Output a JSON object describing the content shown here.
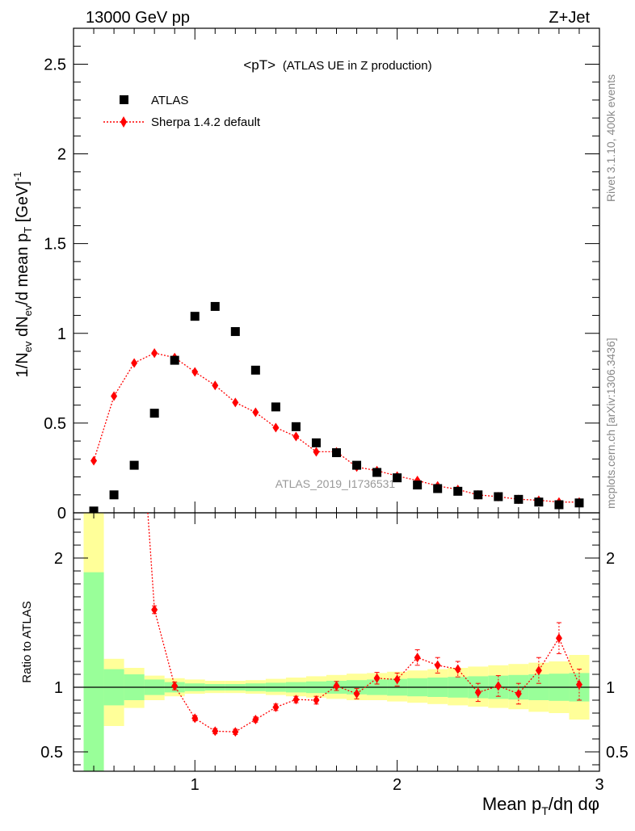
{
  "header": {
    "left": "13000 GeV pp",
    "right": "Z+Jet"
  },
  "side_labels": {
    "rivet": "Rivet 3.1.10,  400k events",
    "mcplots": "mcplots.cern.ch [arXiv:1306.3436]"
  },
  "watermark": "ATLAS_2019_I1736531",
  "chart_data": [
    {
      "type": "scatter",
      "panel": "main",
      "title": "<pT> (ATLAS UE in Z production)",
      "title_main": "<pT>",
      "title_sub": "(ATLAS UE in Z production)",
      "ylabel": "1/N_ev dN_ev/d mean p_T [GeV]^-1",
      "ylabel_parts": {
        "a": "1/N",
        "b": "ev",
        "c": " dN",
        "d": "ev",
        "e": "/d mean p",
        "f": "T",
        "g": " [GeV]",
        "h": "-1"
      },
      "xlim": [
        0.4,
        3.0
      ],
      "ylim": [
        0,
        2.7
      ],
      "yticks": [
        0,
        0.5,
        1,
        1.5,
        2,
        2.5
      ],
      "ytick_labels": [
        "0",
        "0.5",
        "1",
        "1.5",
        "2",
        "2.5"
      ],
      "legend": [
        {
          "name": "ATLAS",
          "color": "#000000",
          "marker": "square"
        },
        {
          "name": "Sherpa 1.4.2 default",
          "color": "#ff0000",
          "marker": "diamond",
          "line": "dotted"
        }
      ],
      "series": [
        {
          "name": "ATLAS",
          "x": [
            0.5,
            0.6,
            0.7,
            0.8,
            0.9,
            1.0,
            1.1,
            1.2,
            1.3,
            1.4,
            1.5,
            1.6,
            1.7,
            1.8,
            1.9,
            2.0,
            2.1,
            2.2,
            2.3,
            2.4,
            2.5,
            2.6,
            2.7,
            2.8,
            2.9
          ],
          "values": [
            0.01,
            0.1,
            0.265,
            0.555,
            0.85,
            1.095,
            1.15,
            1.01,
            0.795,
            0.59,
            0.48,
            0.39,
            0.335,
            0.265,
            0.225,
            0.195,
            0.155,
            0.135,
            0.12,
            0.1,
            0.09,
            0.075,
            0.06,
            0.045,
            0.055
          ]
        },
        {
          "name": "Sherpa 1.4.2 default",
          "x": [
            0.5,
            0.6,
            0.7,
            0.8,
            0.9,
            1.0,
            1.1,
            1.2,
            1.3,
            1.4,
            1.5,
            1.6,
            1.7,
            1.8,
            1.9,
            2.0,
            2.1,
            2.2,
            2.3,
            2.4,
            2.5,
            2.6,
            2.7,
            2.8,
            2.9
          ],
          "values": [
            0.29,
            0.65,
            0.835,
            0.89,
            0.865,
            0.785,
            0.71,
            0.615,
            0.56,
            0.475,
            0.425,
            0.34,
            0.34,
            0.255,
            0.235,
            0.205,
            0.18,
            0.15,
            0.13,
            0.1,
            0.09,
            0.075,
            0.07,
            0.06,
            0.06
          ],
          "errors": [
            0.01,
            0.015,
            0.02,
            0.025,
            0.02,
            0.02,
            0.02,
            0.015,
            0.015,
            0.015,
            0.015,
            0.01,
            0.01,
            0.01,
            0.01,
            0.01,
            0.01,
            0.01,
            0.01,
            0.01,
            0.01,
            0.01,
            0.01,
            0.01,
            0.01
          ]
        }
      ]
    },
    {
      "type": "scatter",
      "panel": "ratio",
      "ylabel": "Ratio to ATLAS",
      "xlabel": "Mean p_T/dη dφ",
      "xlabel_parts": {
        "a": "Mean p",
        "b": "T",
        "c": "/dη dφ"
      },
      "xlim": [
        0.4,
        3.0
      ],
      "ylim": [
        0.35,
        2.35
      ],
      "xticks": [
        1,
        2,
        3
      ],
      "xtick_labels": [
        "1",
        "2",
        "3"
      ],
      "yticks": [
        0.5,
        1,
        2
      ],
      "ytick_labels": [
        "0.5",
        "1",
        "2"
      ],
      "bin_edges": [
        0.45,
        0.55,
        0.65,
        0.75,
        0.85,
        0.95,
        1.05,
        1.15,
        1.25,
        1.35,
        1.45,
        1.55,
        1.65,
        1.75,
        1.85,
        1.95,
        2.05,
        2.15,
        2.25,
        2.35,
        2.45,
        2.55,
        2.65,
        2.75,
        2.85,
        2.95
      ],
      "bands": {
        "green_low": [
          0.35,
          0.86,
          0.9,
          0.94,
          0.96,
          0.97,
          0.975,
          0.975,
          0.97,
          0.965,
          0.96,
          0.955,
          0.95,
          0.945,
          0.94,
          0.935,
          0.93,
          0.925,
          0.92,
          0.915,
          0.91,
          0.905,
          0.9,
          0.895,
          0.89
        ],
        "green_high": [
          1.89,
          1.14,
          1.1,
          1.06,
          1.04,
          1.03,
          1.025,
          1.025,
          1.03,
          1.035,
          1.04,
          1.045,
          1.05,
          1.055,
          1.06,
          1.065,
          1.07,
          1.075,
          1.08,
          1.085,
          1.09,
          1.095,
          1.1,
          1.105,
          1.11
        ],
        "yellow_low": [
          0.35,
          0.7,
          0.84,
          0.9,
          0.93,
          0.95,
          0.955,
          0.955,
          0.95,
          0.94,
          0.93,
          0.92,
          0.91,
          0.9,
          0.9,
          0.89,
          0.88,
          0.87,
          0.86,
          0.85,
          0.84,
          0.83,
          0.81,
          0.8,
          0.75
        ],
        "yellow_high": [
          2.35,
          1.22,
          1.15,
          1.09,
          1.07,
          1.06,
          1.05,
          1.05,
          1.055,
          1.065,
          1.075,
          1.085,
          1.095,
          1.105,
          1.11,
          1.12,
          1.13,
          1.14,
          1.15,
          1.16,
          1.17,
          1.18,
          1.19,
          1.2,
          1.25
        ]
      },
      "band_colors": {
        "yellow": "#ffff99",
        "green": "#99ff99"
      },
      "series": [
        {
          "name": "Sherpa 1.4.2 default",
          "color": "#ff0000",
          "x": [
            0.8,
            0.9,
            1.0,
            1.1,
            1.2,
            1.3,
            1.4,
            1.5,
            1.6,
            1.7,
            1.8,
            1.9,
            2.0,
            2.1,
            2.2,
            2.3,
            2.4,
            2.5,
            2.6,
            2.7,
            2.8,
            2.9
          ],
          "values": [
            1.6,
            1.01,
            0.76,
            0.66,
            0.655,
            0.75,
            0.845,
            0.905,
            0.9,
            1.01,
            0.95,
            1.07,
            1.06,
            1.23,
            1.17,
            1.14,
            0.96,
            1.01,
            0.95,
            1.13,
            1.38,
            1.02
          ],
          "errors": [
            0.03,
            0.03,
            0.02,
            0.02,
            0.02,
            0.02,
            0.025,
            0.025,
            0.03,
            0.035,
            0.04,
            0.045,
            0.05,
            0.06,
            0.06,
            0.06,
            0.07,
            0.08,
            0.08,
            0.1,
            0.12,
            0.12
          ],
          "offscale_from": {
            "x": 0.75,
            "y": 2.75
          }
        }
      ]
    }
  ]
}
